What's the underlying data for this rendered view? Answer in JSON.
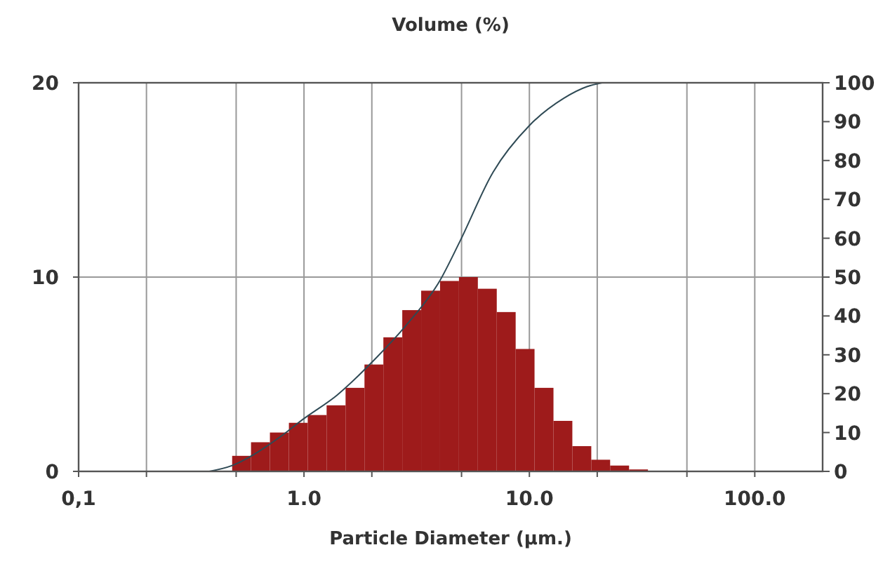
{
  "chart_data": {
    "type": "histogram",
    "title": "Volume (%)",
    "xlabel": "Particle Diameter (µm.)",
    "log": "x",
    "grid": true,
    "xlim": [
      0.1,
      200
    ],
    "xticks": [
      {
        "value": 0.1,
        "label": "0,1"
      },
      {
        "value": 0.2,
        "label": null
      },
      {
        "value": 0.5,
        "label": null
      },
      {
        "value": 1,
        "label": "1.0"
      },
      {
        "value": 2,
        "label": null
      },
      {
        "value": 5,
        "label": null
      },
      {
        "value": 10,
        "label": "10.0"
      },
      {
        "value": 20,
        "label": null
      },
      {
        "value": 50,
        "label": null
      },
      {
        "value": 100,
        "label": "100.0"
      }
    ],
    "ylim": [
      0,
      20
    ],
    "yticks": [
      0,
      10,
      20
    ],
    "y2lim": [
      0,
      100
    ],
    "y2ticks": [
      0,
      10,
      20,
      30,
      40,
      50,
      60,
      70,
      80,
      90,
      100
    ],
    "series": [
      {
        "color": "#9e1b1b",
        "bins": [
          0.48,
          0.582,
          0.706,
          0.857,
          1.039,
          1.26,
          1.529,
          1.855,
          2.25,
          2.729,
          3.31,
          4.015,
          4.87,
          5.907,
          7.166,
          8.692,
          10.54,
          12.79,
          15.51,
          18.82,
          22.82,
          27.69,
          33.58
        ],
        "values": [
          0.8,
          1.5,
          2.0,
          2.5,
          2.9,
          3.4,
          4.3,
          5.5,
          6.9,
          8.3,
          9.3,
          9.8,
          10.0,
          9.4,
          8.2,
          6.3,
          4.3,
          2.6,
          1.3,
          0.6,
          0.3,
          0.1
        ]
      },
      {
        "type": "line",
        "axis": "y2",
        "color": "#2f4a55",
        "x": [
          0.38,
          0.48,
          0.585,
          0.68,
          0.78,
          1.0,
          1.4,
          2.05,
          2.88,
          4.0,
          4.9,
          6.9,
          10,
          14.2,
          18,
          21
        ],
        "values": [
          0,
          1.5,
          4,
          6.4,
          8.8,
          13.6,
          19.6,
          28.7,
          38,
          49,
          59,
          77,
          89,
          96,
          99,
          100
        ]
      }
    ]
  }
}
